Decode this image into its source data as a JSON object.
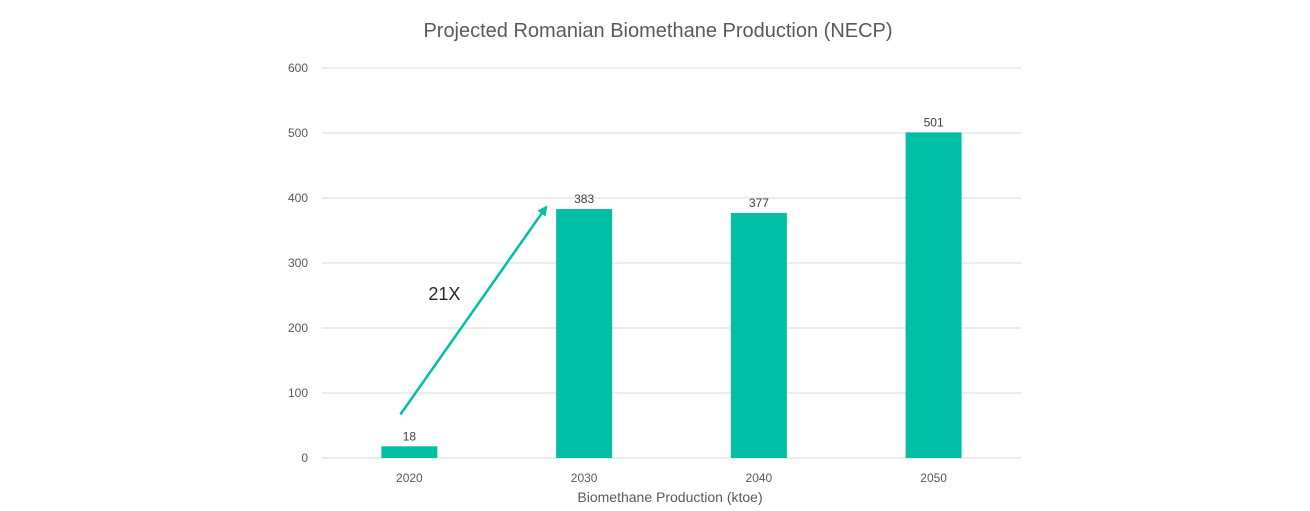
{
  "chart_data": {
    "type": "bar",
    "title": "Projected Romanian Biomethane Production (NECP)",
    "xlabel": "Biomethane Production (ktoe)",
    "ylabel": "",
    "categories": [
      "2020",
      "2030",
      "2040",
      "2050"
    ],
    "values": [
      18,
      383,
      377,
      501
    ],
    "data_labels": [
      "18",
      "383",
      "377",
      "501"
    ],
    "ylim": [
      0,
      600
    ],
    "yticks": [
      0,
      100,
      200,
      300,
      400,
      500,
      600
    ],
    "grid": true,
    "legend": "none",
    "bar_color": "#00BFA5",
    "annotation": {
      "text": "21X",
      "arrow_from": {
        "category": "2020",
        "value": 70
      },
      "arrow_to": {
        "category": "2030",
        "value": 383
      }
    }
  }
}
